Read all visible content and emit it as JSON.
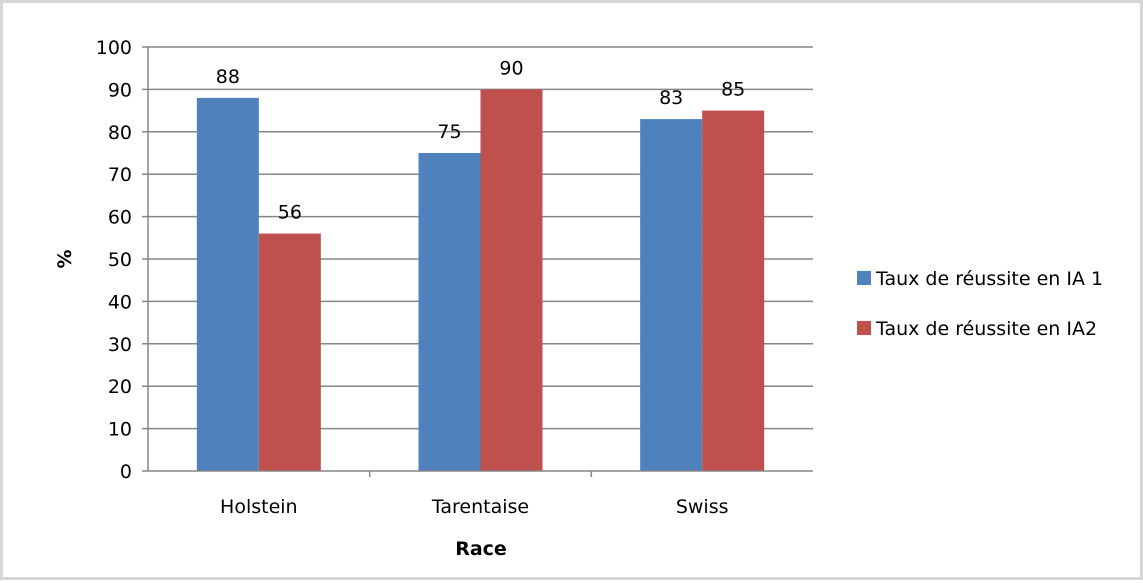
{
  "chart_data": {
    "type": "bar",
    "categories": [
      "Holstein",
      "Tarentaise",
      "Swiss"
    ],
    "series": [
      {
        "name": "Taux de réussite en IA 1",
        "values": [
          88,
          75,
          83
        ],
        "color": "#4f81bd"
      },
      {
        "name": "Taux de réussite en IA2",
        "values": [
          56,
          90,
          85
        ],
        "color": "#c0504d"
      }
    ],
    "title": "",
    "xlabel": "Race",
    "ylabel": "%",
    "ylim": [
      0,
      100
    ],
    "yticks": [
      0,
      10,
      20,
      30,
      40,
      50,
      60,
      70,
      80,
      90,
      100
    ],
    "grid": true,
    "legend_position": "right"
  }
}
